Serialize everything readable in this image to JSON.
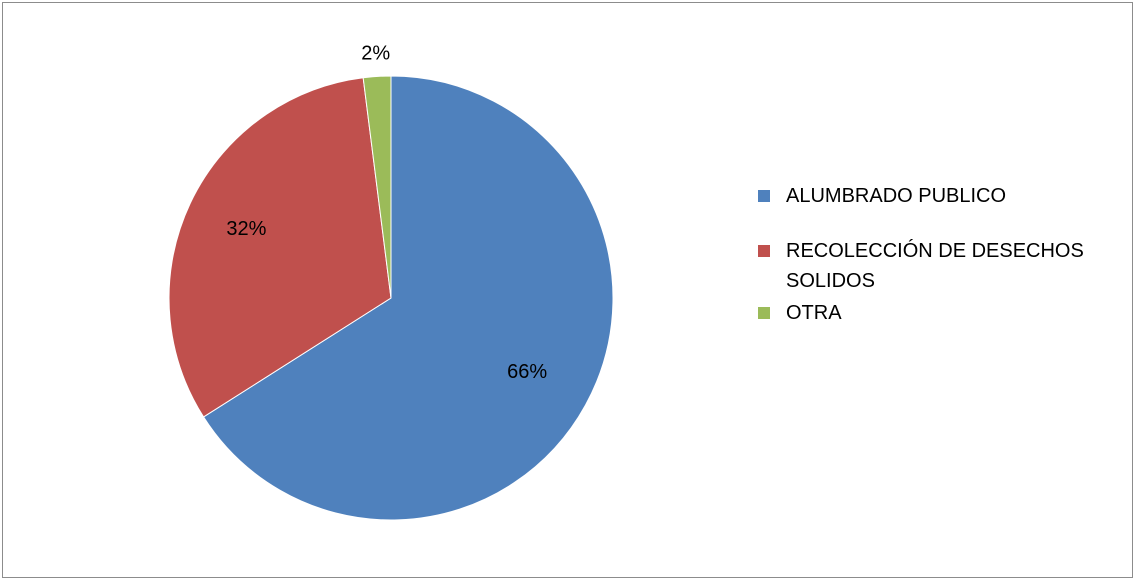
{
  "chart_data": {
    "type": "pie",
    "title": "",
    "categories": [
      "ALUMBRADO PUBLICO",
      "RECOLECCIÓN DE DESECHOS SOLIDOS",
      "OTRA"
    ],
    "values": [
      66,
      32,
      2
    ],
    "data_labels": [
      "66%",
      "32%",
      "2%"
    ],
    "colors": [
      "#4f81bd",
      "#c0504d",
      "#9bbb59"
    ],
    "legend": "right",
    "start_angle_deg": 0,
    "direction": "clockwise"
  }
}
